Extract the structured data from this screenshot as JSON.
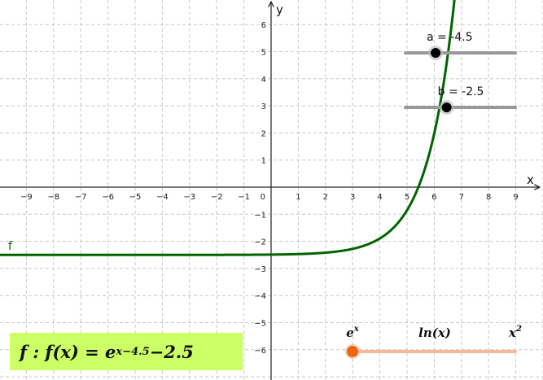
{
  "chart_data": {
    "type": "line",
    "title": "",
    "xlabel": "x",
    "ylabel": "y",
    "xlim": [
      -10,
      10
    ],
    "ylim": [
      -7,
      7
    ],
    "grid": true,
    "x_ticks": [
      -9,
      -8,
      -7,
      -6,
      -5,
      -4,
      -3,
      -2,
      -1,
      1,
      2,
      3,
      4,
      5,
      6,
      7,
      8,
      9
    ],
    "y_ticks": [
      -6,
      -5,
      -4,
      -3,
      -2,
      -1,
      1,
      2,
      3,
      4,
      5,
      6
    ],
    "origin_label": "0",
    "series": [
      {
        "name": "f",
        "color": "#006400",
        "expression": "e^(x-4.5) - 2.5",
        "a": -4.5,
        "b": -2.5
      }
    ]
  },
  "sliders": [
    {
      "label": "a = -4.5",
      "value": -4.5,
      "min": -10,
      "max": 10,
      "fraction": 0.275,
      "color": "#000000"
    },
    {
      "label": "b = -2.5",
      "value": -2.5,
      "min": -10,
      "max": 10,
      "fraction": 0.375,
      "color": "#000000"
    }
  ],
  "function_selector": {
    "options": [
      "e^x",
      "ln(x)",
      "x^2"
    ],
    "selected": "e^x",
    "color": "#ff6600"
  },
  "formula": {
    "prefix": "f : f(x) = e",
    "exponent": "x−4.5",
    "minus": " − ",
    "constant": "2.5"
  }
}
